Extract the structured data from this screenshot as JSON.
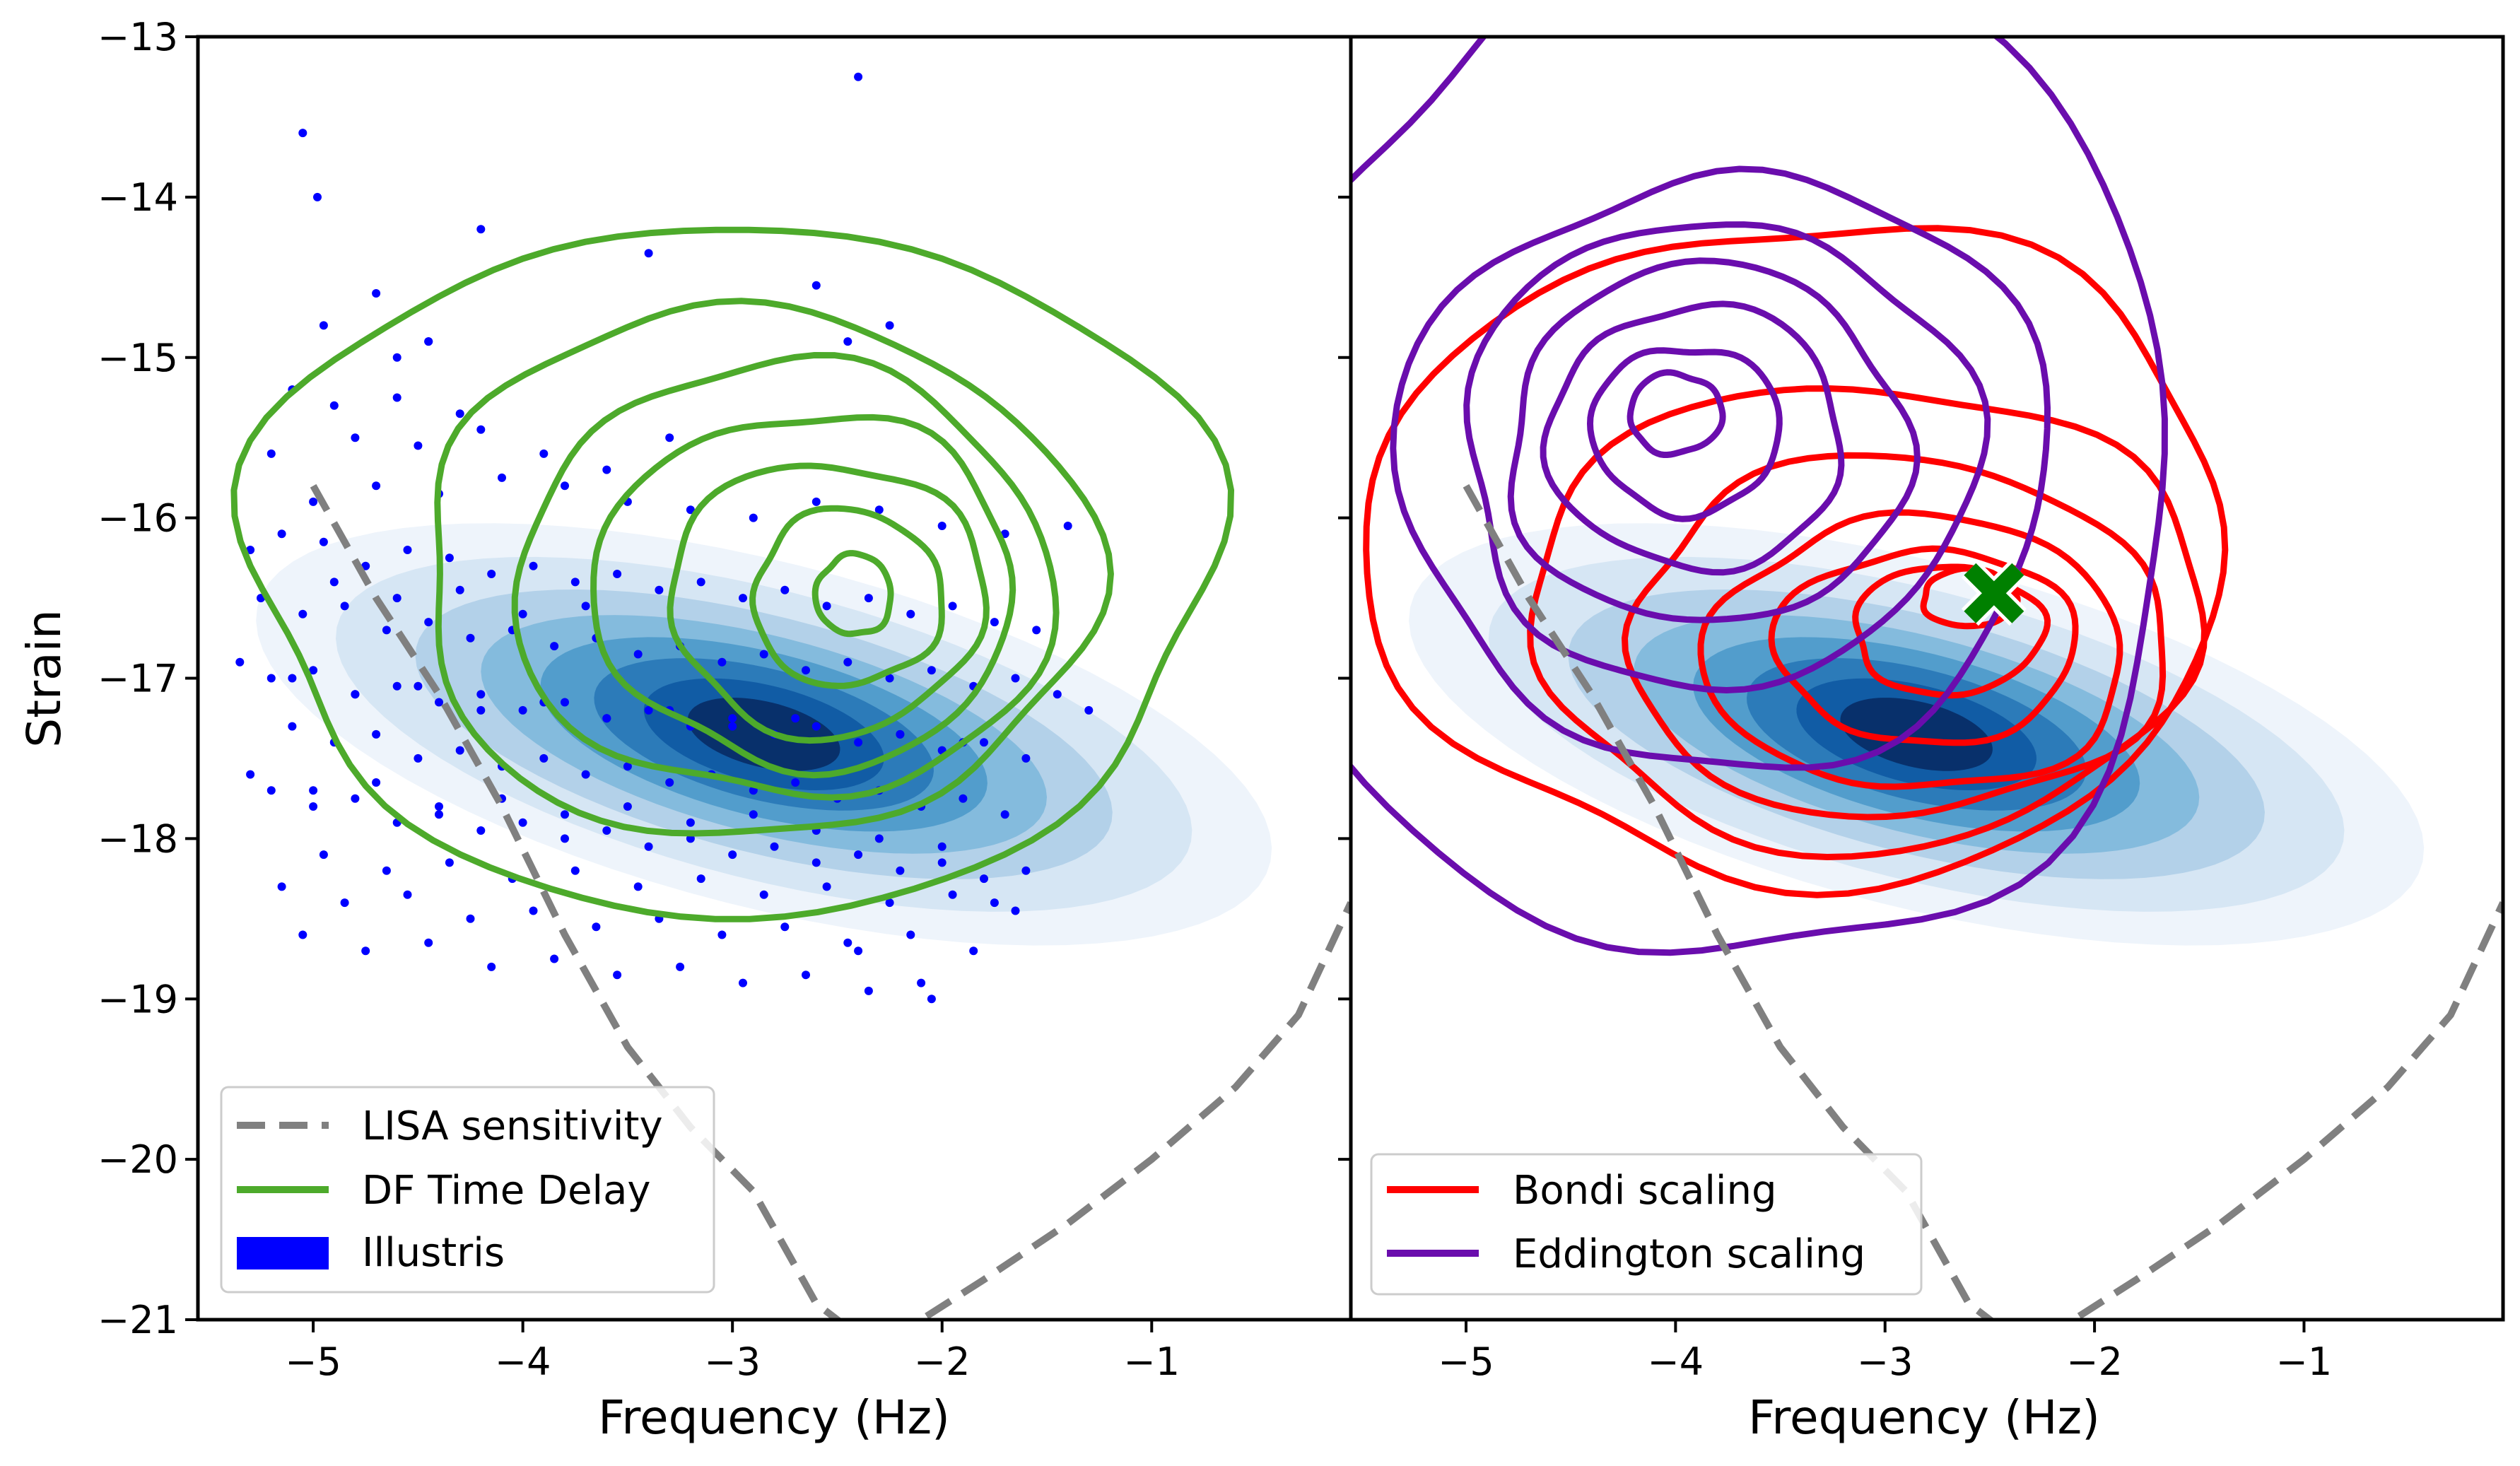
{
  "chart_data": [
    {
      "type": "scatter",
      "panel": "left",
      "xlabel": "Frequency (Hz)",
      "ylabel": "Strain",
      "xlim": [
        -5.55,
        -0.05
      ],
      "ylim": [
        -21,
        -13
      ],
      "xticks": [
        -5,
        -4,
        -3,
        -2,
        -1
      ],
      "yticks": [
        -21,
        -20,
        -19,
        -18,
        -17,
        -16,
        -15,
        -14,
        -13
      ],
      "xtick_labels": [
        "−5",
        "−4",
        "−3",
        "−2",
        "−1"
      ],
      "ytick_labels": [
        "−21",
        "−20",
        "−19",
        "−18",
        "−17",
        "−16",
        "−15",
        "−14",
        "−13"
      ],
      "legend_position": "lower-left",
      "legend": [
        {
          "label": "LISA sensitivity",
          "style": "dashed-line",
          "color": "#808080"
        },
        {
          "label": "DF Time Delay",
          "style": "line",
          "color": "#4daa2b"
        },
        {
          "label": "Illustris",
          "style": "patch",
          "color": "#0000ff"
        }
      ],
      "series": [
        {
          "name": "LISA sensitivity",
          "kind": "dashed-curve",
          "color": "#808080",
          "x": [
            -5.0,
            -4.7,
            -4.4,
            -4.1,
            -3.8,
            -3.5,
            -3.2,
            -2.9,
            -2.6,
            -2.3,
            -2.1,
            -1.8,
            -1.4,
            -1.0,
            -0.6,
            -0.3,
            -0.05
          ],
          "y": [
            -15.8,
            -16.5,
            -17.1,
            -17.8,
            -18.6,
            -19.3,
            -19.8,
            -20.2,
            -20.9,
            -21.2,
            -21.0,
            -20.75,
            -20.4,
            -20.0,
            -19.55,
            -19.1,
            -18.4
          ]
        },
        {
          "name": "DF Time Delay",
          "kind": "contour",
          "color": "#4daa2b",
          "levels": [
            {
              "cx": -3.0,
              "cy": -16.3,
              "rx": 2.3,
              "ry": 2.15
            },
            {
              "cx": -2.9,
              "cy": -16.35,
              "rx": 1.6,
              "ry": 1.65
            },
            {
              "cx": -2.75,
              "cy": -16.4,
              "rx": 1.28,
              "ry": 1.35
            },
            {
              "cx": -2.65,
              "cy": -16.45,
              "rx": 1.0,
              "ry": 1.1
            },
            {
              "cx": -2.55,
              "cy": -16.5,
              "rx": 0.75,
              "ry": 0.85
            },
            {
              "cx": -2.45,
              "cy": -16.5,
              "rx": 0.45,
              "ry": 0.55
            },
            {
              "cx": -2.42,
              "cy": -16.48,
              "rx": 0.18,
              "ry": 0.25
            }
          ]
        },
        {
          "name": "Illustris",
          "kind": "filled-density",
          "color": "#08306b",
          "center": [
            -2.85,
            -17.35
          ],
          "angle_deg": -20,
          "levels": [
            {
              "rx": 2.55,
              "ry": 1.05,
              "fill": "#eef4fb"
            },
            {
              "rx": 2.15,
              "ry": 0.88,
              "fill": "#d6e6f4"
            },
            {
              "rx": 1.75,
              "ry": 0.72,
              "fill": "#b3d1e9"
            },
            {
              "rx": 1.42,
              "ry": 0.6,
              "fill": "#84bbdd"
            },
            {
              "rx": 1.12,
              "ry": 0.5,
              "fill": "#529dcc"
            },
            {
              "rx": 0.85,
              "ry": 0.4,
              "fill": "#2c7bb9"
            },
            {
              "rx": 0.6,
              "ry": 0.3,
              "fill": "#115ca5"
            },
            {
              "rx": 0.38,
              "ry": 0.2,
              "fill": "#08306b"
            }
          ]
        },
        {
          "name": "Illustris points",
          "kind": "points",
          "color": "#0000ff",
          "x": [
            -5.1,
            -4.9,
            -4.6,
            -4.3,
            -5.2,
            -4.8,
            -4.5,
            -4.2,
            -3.9,
            -3.6,
            -3.3,
            -5.0,
            -4.7,
            -4.4,
            -4.1,
            -3.8,
            -3.5,
            -3.2,
            -2.9,
            -2.6,
            -2.3,
            -2.0,
            -1.7,
            -1.4,
            -5.3,
            -5.15,
            -4.95,
            -4.75,
            -4.55,
            -4.35,
            -4.15,
            -3.95,
            -3.75,
            -3.55,
            -3.35,
            -3.15,
            -2.95,
            -2.75,
            -2.55,
            -2.35,
            -2.15,
            -1.95,
            -1.75,
            -1.55,
            -5.25,
            -5.05,
            -4.85,
            -4.65,
            -4.45,
            -4.25,
            -4.05,
            -3.85,
            -3.65,
            -3.45,
            -3.25,
            -3.05,
            -2.85,
            -2.65,
            -2.45,
            -2.25,
            -2.05,
            -1.85,
            -1.65,
            -1.45,
            -1.3,
            -5.35,
            -5.2,
            -5.0,
            -4.8,
            -4.6,
            -4.4,
            -4.2,
            -4.0,
            -3.8,
            -3.6,
            -3.4,
            -3.2,
            -3.0,
            -2.8,
            -2.6,
            -2.4,
            -2.2,
            -2.0,
            -1.8,
            -1.6,
            -5.1,
            -4.9,
            -4.7,
            -4.5,
            -4.3,
            -4.1,
            -3.9,
            -3.7,
            -3.5,
            -3.3,
            -3.1,
            -2.9,
            -2.7,
            -2.5,
            -2.3,
            -2.1,
            -1.9,
            -1.7,
            -5.2,
            -5.0,
            -4.8,
            -4.6,
            -4.4,
            -4.2,
            -4.0,
            -3.8,
            -3.6,
            -3.4,
            -3.2,
            -3.0,
            -2.8,
            -2.6,
            -2.4,
            -2.2,
            -2.0,
            -1.8,
            -1.6,
            -4.95,
            -4.65,
            -4.35,
            -4.05,
            -3.75,
            -3.45,
            -3.15,
            -2.85,
            -2.55,
            -2.25,
            -1.95,
            -1.65,
            -5.15,
            -4.85,
            -4.55,
            -4.25,
            -3.95,
            -3.65,
            -3.35,
            -3.05,
            -2.75,
            -2.45,
            -2.15,
            -1.85,
            -5.05,
            -4.75,
            -4.45,
            -4.15,
            -3.85,
            -3.55,
            -3.25,
            -2.95,
            -2.65,
            -2.35,
            -2.05,
            -5.3,
            -5.0,
            -4.7,
            -4.4,
            -4.1,
            -3.8,
            -3.5,
            -3.2,
            -2.9,
            -2.6,
            -2.3,
            -2.0,
            -4.9,
            -4.6,
            -4.3,
            -4.0,
            -3.7,
            -2.4,
            -2.1,
            -1.75,
            -5.1,
            -4.8,
            -4.5,
            -4.2,
            -3.9,
            -3.6,
            -3.3,
            -3.0,
            -2.7,
            -2.2,
            -1.9,
            -4.95,
            -4.7,
            -4.45,
            -3.4,
            -2.6,
            -2.45,
            -2.25,
            -4.98,
            -5.05,
            -4.6,
            -4.45,
            -4.2
          ],
          "y": [
            -15.2,
            -15.3,
            -15.25,
            -15.35,
            -15.6,
            -15.5,
            -15.55,
            -15.45,
            -15.6,
            -15.7,
            -15.5,
            -15.9,
            -15.8,
            -15.85,
            -15.75,
            -15.8,
            -15.9,
            -15.95,
            -16.0,
            -15.9,
            -15.95,
            -16.05,
            -16.1,
            -16.05,
            -16.2,
            -16.1,
            -16.15,
            -16.3,
            -16.2,
            -16.25,
            -16.35,
            -16.3,
            -16.4,
            -16.35,
            -16.45,
            -16.4,
            -16.5,
            -16.45,
            -16.55,
            -16.5,
            -16.6,
            -16.55,
            -16.65,
            -16.7,
            -16.5,
            -16.6,
            -16.55,
            -16.7,
            -16.65,
            -16.75,
            -16.7,
            -16.8,
            -16.75,
            -16.85,
            -16.8,
            -16.9,
            -16.85,
            -16.95,
            -16.9,
            -17.0,
            -16.95,
            -17.05,
            -17.0,
            -17.1,
            -17.2,
            -16.9,
            -17.0,
            -16.95,
            -17.1,
            -17.05,
            -17.15,
            -17.1,
            -17.2,
            -17.15,
            -17.25,
            -17.2,
            -17.3,
            -17.25,
            -17.35,
            -17.3,
            -17.4,
            -17.35,
            -17.45,
            -17.4,
            -17.5,
            -17.3,
            -17.4,
            -17.35,
            -17.5,
            -17.45,
            -17.55,
            -17.5,
            -17.6,
            -17.55,
            -17.65,
            -17.6,
            -17.7,
            -17.65,
            -17.75,
            -17.7,
            -17.8,
            -17.75,
            -17.85,
            -17.7,
            -17.8,
            -17.75,
            -17.9,
            -17.85,
            -17.95,
            -17.9,
            -18.0,
            -17.95,
            -18.05,
            -18.0,
            -18.1,
            -18.05,
            -18.15,
            -18.1,
            -18.2,
            -18.15,
            -18.25,
            -18.2,
            -18.1,
            -18.2,
            -18.15,
            -18.25,
            -18.2,
            -18.3,
            -18.25,
            -18.35,
            -18.3,
            -18.4,
            -18.35,
            -18.45,
            -18.3,
            -18.4,
            -18.35,
            -18.5,
            -18.45,
            -18.55,
            -18.5,
            -18.6,
            -18.55,
            -18.65,
            -18.6,
            -18.7,
            -18.6,
            -18.7,
            -18.65,
            -18.8,
            -18.75,
            -18.85,
            -18.8,
            -18.9,
            -18.85,
            -18.95,
            -19.0,
            -17.6,
            -17.7,
            -17.65,
            -17.8,
            -17.75,
            -17.85,
            -17.8,
            -17.9,
            -17.85,
            -17.95,
            -18.0,
            -18.05,
            -16.4,
            -16.5,
            -16.45,
            -16.6,
            -16.55,
            -18.7,
            -18.9,
            -18.4,
            -17.0,
            -17.1,
            -17.05,
            -17.2,
            -17.15,
            -17.25,
            -17.2,
            -17.3,
            -17.25,
            -17.35,
            -17.4,
            -14.8,
            -14.6,
            -14.9,
            -14.35,
            -14.55,
            -14.9,
            -14.8,
            -14.0,
            -13.6,
            -15.0,
            -14.9,
            -14.2
          ]
        },
        {
          "name": "outlier",
          "kind": "points",
          "color": "#0000ff",
          "x": [
            -2.4
          ],
          "y": [
            -13.25
          ]
        }
      ]
    },
    {
      "type": "line",
      "panel": "right",
      "xlabel": "Frequency (Hz)",
      "ylabel": "",
      "xlim": [
        -5.55,
        -0.05
      ],
      "ylim": [
        -21,
        -13
      ],
      "xticks": [
        -5,
        -4,
        -3,
        -2,
        -1
      ],
      "xtick_labels": [
        "−5",
        "−4",
        "−3",
        "−2",
        "−1"
      ],
      "legend_position": "lower-left",
      "legend": [
        {
          "label": "Bondi scaling",
          "style": "line",
          "color": "#ff0000"
        },
        {
          "label": "Eddington scaling",
          "style": "line",
          "color": "#6a0dad"
        }
      ],
      "marker": {
        "x": -2.48,
        "y": -16.47,
        "symbol": "X",
        "color": "#008000"
      },
      "series": [
        {
          "name": "LISA sensitivity",
          "kind": "dashed-curve",
          "color": "#808080",
          "x": [
            -5.0,
            -4.7,
            -4.4,
            -4.1,
            -3.8,
            -3.5,
            -3.2,
            -2.9,
            -2.6,
            -2.3,
            -2.1,
            -1.8,
            -1.4,
            -1.0,
            -0.6,
            -0.3,
            -0.05
          ],
          "y": [
            -15.8,
            -16.5,
            -17.1,
            -17.8,
            -18.6,
            -19.3,
            -19.8,
            -20.2,
            -20.9,
            -21.2,
            -21.0,
            -20.75,
            -20.4,
            -20.0,
            -19.55,
            -19.1,
            -18.4
          ]
        },
        {
          "name": "Illustris",
          "kind": "filled-density",
          "color": "#08306b",
          "center": [
            -2.85,
            -17.35
          ],
          "angle_deg": -20,
          "levels": [
            {
              "rx": 2.55,
              "ry": 1.05,
              "fill": "#eef4fb"
            },
            {
              "rx": 2.15,
              "ry": 0.88,
              "fill": "#d6e6f4"
            },
            {
              "rx": 1.75,
              "ry": 0.72,
              "fill": "#b3d1e9"
            },
            {
              "rx": 1.42,
              "ry": 0.6,
              "fill": "#84bbdd"
            },
            {
              "rx": 1.12,
              "ry": 0.5,
              "fill": "#529dcc"
            },
            {
              "rx": 0.85,
              "ry": 0.4,
              "fill": "#2c7bb9"
            },
            {
              "rx": 0.6,
              "ry": 0.3,
              "fill": "#115ca5"
            },
            {
              "rx": 0.38,
              "ry": 0.2,
              "fill": "#08306b"
            }
          ]
        },
        {
          "name": "Bondi scaling",
          "kind": "contour",
          "color": "#ff0000",
          "levels": [
            {
              "cx": -3.4,
              "cy": -16.2,
              "rx": 2.05,
              "ry": 2.05
            },
            {
              "cx": -3.1,
              "cy": -16.6,
              "rx": 1.6,
              "ry": 1.45
            },
            {
              "cx": -2.95,
              "cy": -16.75,
              "rx": 1.28,
              "ry": 1.12
            },
            {
              "cx": -2.85,
              "cy": -16.85,
              "rx": 1.0,
              "ry": 0.85
            },
            {
              "cx": -2.8,
              "cy": -16.8,
              "rx": 0.72,
              "ry": 0.6
            },
            {
              "cx": -2.7,
              "cy": -16.7,
              "rx": 0.45,
              "ry": 0.4
            },
            {
              "cx": -2.6,
              "cy": -16.5,
              "rx": 0.22,
              "ry": 0.18
            }
          ]
        },
        {
          "name": "Eddington scaling",
          "kind": "contour",
          "color": "#6a0dad",
          "levels": [
            {
              "cx": -3.8,
              "cy": -15.6,
              "rx": 2.2,
              "ry": 3.2
            },
            {
              "cx": -3.75,
              "cy": -15.7,
              "rx": 1.55,
              "ry": 1.85
            },
            {
              "cx": -3.8,
              "cy": -15.6,
              "rx": 1.22,
              "ry": 1.45
            },
            {
              "cx": -3.85,
              "cy": -15.55,
              "rx": 0.95,
              "ry": 1.12
            },
            {
              "cx": -3.9,
              "cy": -15.5,
              "rx": 0.7,
              "ry": 0.82
            },
            {
              "cx": -3.95,
              "cy": -15.45,
              "rx": 0.45,
              "ry": 0.52
            },
            {
              "cx": -4.0,
              "cy": -15.35,
              "rx": 0.22,
              "ry": 0.25
            }
          ]
        }
      ]
    }
  ]
}
